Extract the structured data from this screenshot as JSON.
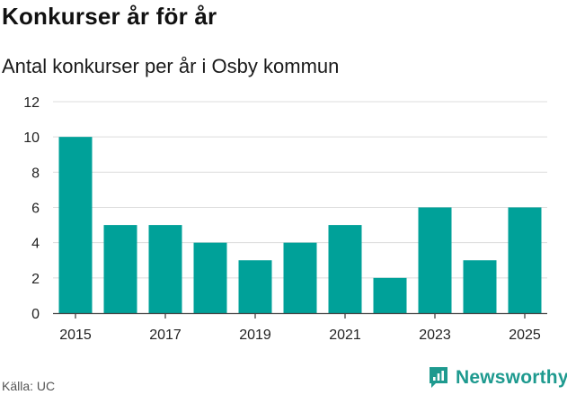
{
  "header": {
    "title": "Konkurser år för år",
    "subtitle": "Antal konkurser per år i Osby kommun"
  },
  "footer": {
    "source": "Källa: UC",
    "brand": "Newsworthy"
  },
  "colors": {
    "bar": "#00a199",
    "grid": "#dcdcdc",
    "brand": "#1e9a8f"
  },
  "chart_data": {
    "type": "bar",
    "title": "Konkurser år för år",
    "subtitle": "Antal konkurser per år i Osby kommun",
    "xlabel": "",
    "ylabel": "",
    "categories": [
      "2015",
      "2016",
      "2017",
      "2018",
      "2019",
      "2020",
      "2021",
      "2022",
      "2023",
      "2024",
      "2025"
    ],
    "values": [
      10,
      5,
      5,
      4,
      3,
      4,
      5,
      2,
      6,
      3,
      6
    ],
    "x_tick_labels": [
      "2015",
      "2017",
      "2019",
      "2021",
      "2023",
      "2025"
    ],
    "y_ticks": [
      0,
      2,
      4,
      6,
      8,
      10,
      12
    ],
    "ylim": [
      0,
      12
    ],
    "grid": true
  }
}
